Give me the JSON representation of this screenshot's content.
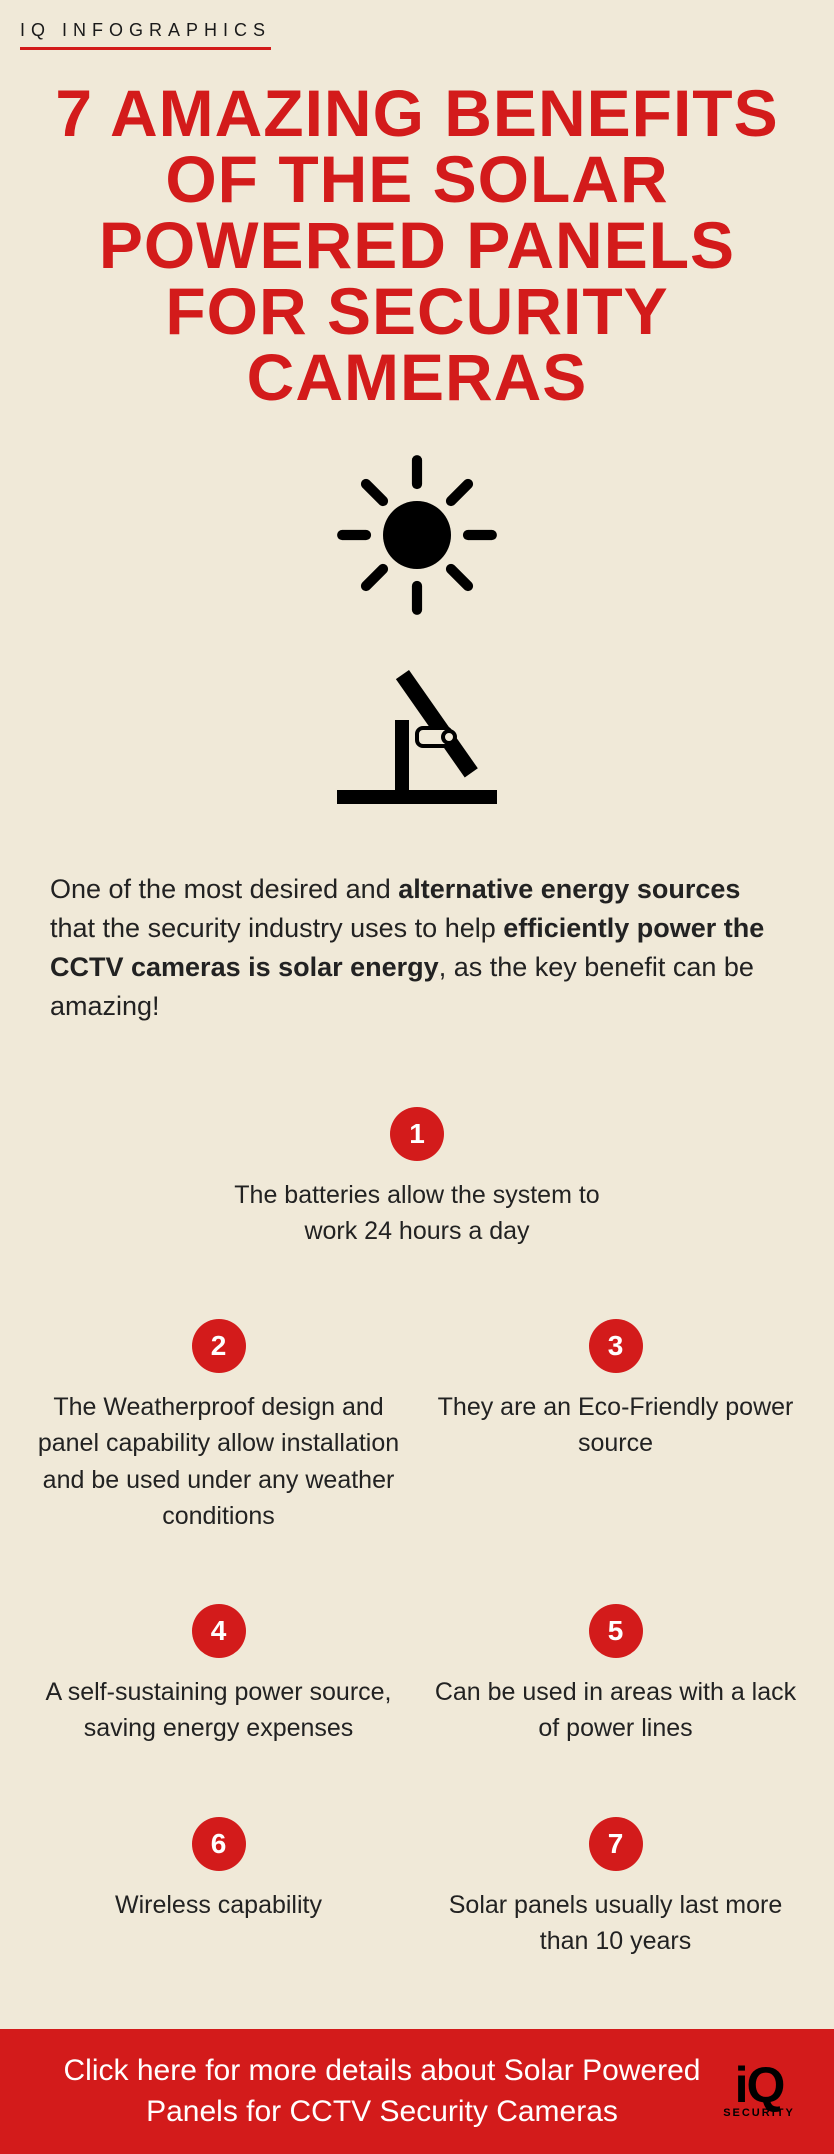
{
  "colors": {
    "background": "#f0e9d8",
    "accent_red": "#d31b1b",
    "text_dark": "#1a1a1a",
    "body_text": "#222222",
    "footer_text": "#ffffff",
    "logo_black": "#000000"
  },
  "header_label": "IQ INFOGRAPHICS",
  "title": "7 AMAZING BENEFITS OF THE SOLAR POWERED PANELS FOR SECURITY CAMERAS",
  "title_fontsize": 66,
  "title_font": "Impact",
  "intro": {
    "parts": [
      {
        "t": "One of the most desired and ",
        "b": false
      },
      {
        "t": "alternative energy sources",
        "b": true
      },
      {
        "t": " that the security industry uses to help ",
        "b": false
      },
      {
        "t": "efficiently power the CCTV cameras is solar energy",
        "b": true
      },
      {
        "t": ", as the key benefit can be amazing!",
        "b": false
      }
    ],
    "fontsize": 27
  },
  "hero": {
    "sun_icon": {
      "type": "sun",
      "size": 170,
      "color": "#000000"
    },
    "panel_icon": {
      "type": "solar-panel-camera",
      "size": 180,
      "color": "#000000"
    }
  },
  "benefits": {
    "badge_bg": "#d31b1b",
    "badge_size": 54,
    "text_fontsize": 25,
    "layout": [
      [
        1
      ],
      [
        2,
        3
      ],
      [
        4,
        5
      ],
      [
        6,
        7
      ]
    ],
    "items": {
      "1": "The batteries allow the system to work 24 hours a day",
      "2": "The Weatherproof design and panel capability allow installation and be used under any weather conditions",
      "3": "They are an Eco-Friendly power source",
      "4": "A self-sustaining power source, saving energy expenses",
      "5": "Can be used in areas with a lack of power lines",
      "6": "Wireless capability",
      "7": "Solar panels usually last more than 10 years"
    }
  },
  "footer": {
    "text": "Click here for more details about Solar Powered Panels for CCTV Security Cameras",
    "bg": "#d31b1b",
    "fontsize": 30,
    "logo_top": "iQ",
    "logo_sub": "SECURITY"
  }
}
